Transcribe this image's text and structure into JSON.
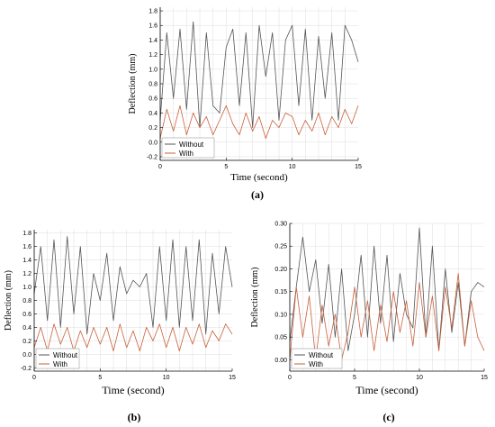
{
  "chart_data": [
    {
      "type": "line",
      "panel_label": "(a)",
      "xlabel": "Time (second)",
      "ylabel": "Deflection (mm)",
      "xlim": [
        0,
        15
      ],
      "ylim": [
        -0.25,
        1.85
      ],
      "xticks": [
        0,
        5,
        10,
        15
      ],
      "xtick_labels": [
        "0",
        "5",
        "10",
        "15"
      ],
      "yticks": [
        -0.2,
        0.0,
        0.2,
        0.4,
        0.6,
        0.8,
        1.0,
        1.2,
        1.4,
        1.6,
        1.8
      ],
      "ytick_labels": [
        "-0.2",
        "0.0",
        "0.2",
        "0.4",
        "0.6",
        "0.8",
        "1.0",
        "1.2",
        "1.4",
        "1.6",
        "1.8"
      ],
      "grid": true,
      "legend_position": "bottom-left",
      "series": [
        {
          "name": "Without",
          "color": "#555555",
          "x": [
            0.0,
            0.5,
            1.0,
            1.5,
            2.0,
            2.5,
            3.0,
            3.5,
            4.0,
            4.5,
            5.0,
            5.5,
            6.0,
            6.5,
            7.0,
            7.5,
            8.0,
            8.5,
            9.0,
            9.5,
            10.0,
            10.5,
            11.0,
            11.5,
            12.0,
            12.5,
            13.0,
            13.5,
            14.0,
            14.5,
            15.0
          ],
          "values": [
            0.3,
            1.5,
            0.6,
            1.55,
            0.45,
            1.65,
            0.2,
            1.5,
            0.5,
            0.4,
            1.3,
            1.55,
            0.5,
            1.5,
            0.2,
            1.6,
            0.9,
            1.5,
            0.3,
            1.4,
            1.6,
            0.5,
            1.55,
            0.3,
            1.45,
            0.6,
            1.5,
            0.3,
            1.6,
            1.4,
            1.1
          ]
        },
        {
          "name": "With",
          "color": "#c8603a",
          "x": [
            0.0,
            0.5,
            1.0,
            1.5,
            2.0,
            2.5,
            3.0,
            3.5,
            4.0,
            4.5,
            5.0,
            5.5,
            6.0,
            6.5,
            7.0,
            7.5,
            8.0,
            8.5,
            9.0,
            9.5,
            10.0,
            10.5,
            11.0,
            11.5,
            12.0,
            12.5,
            13.0,
            13.5,
            14.0,
            14.5,
            15.0
          ],
          "values": [
            0.05,
            0.45,
            0.15,
            0.5,
            0.1,
            0.4,
            0.2,
            0.35,
            0.1,
            0.3,
            0.5,
            0.25,
            0.1,
            0.4,
            0.15,
            0.35,
            0.05,
            0.3,
            0.2,
            0.4,
            0.35,
            0.1,
            0.3,
            0.15,
            0.4,
            0.1,
            0.35,
            0.2,
            0.45,
            0.25,
            0.5
          ]
        }
      ]
    },
    {
      "type": "line",
      "panel_label": "(b)",
      "xlabel": "Time (second)",
      "ylabel": "Deflection (mm)",
      "xlim": [
        0,
        15
      ],
      "ylim": [
        -0.25,
        1.85
      ],
      "xticks": [
        0,
        5,
        10,
        15
      ],
      "xtick_labels": [
        "0",
        "5",
        "10",
        "15"
      ],
      "yticks": [
        -0.2,
        0.0,
        0.2,
        0.4,
        0.6,
        0.8,
        1.0,
        1.2,
        1.4,
        1.6,
        1.8
      ],
      "ytick_labels": [
        "-0.2",
        "0.0",
        "0.2",
        "0.4",
        "0.6",
        "0.8",
        "1.0",
        "1.2",
        "1.4",
        "1.6",
        "1.8"
      ],
      "grid": true,
      "legend_position": "bottom-left",
      "series": [
        {
          "name": "Without",
          "color": "#555555",
          "x": [
            0.0,
            0.5,
            1.0,
            1.5,
            2.0,
            2.5,
            3.0,
            3.5,
            4.0,
            4.5,
            5.0,
            5.5,
            6.0,
            6.5,
            7.0,
            7.5,
            8.0,
            8.5,
            9.0,
            9.5,
            10.0,
            10.5,
            11.0,
            11.5,
            12.0,
            12.5,
            13.0,
            13.5,
            14.0,
            14.5,
            15.0
          ],
          "values": [
            0.9,
            1.6,
            0.5,
            1.7,
            0.4,
            1.75,
            0.6,
            1.6,
            0.3,
            1.2,
            0.8,
            1.5,
            0.5,
            1.3,
            0.9,
            1.1,
            1.0,
            1.2,
            0.4,
            1.6,
            0.5,
            1.7,
            0.4,
            1.6,
            0.5,
            1.7,
            0.3,
            1.5,
            0.6,
            1.6,
            1.0
          ]
        },
        {
          "name": "With",
          "color": "#c8603a",
          "x": [
            0.0,
            0.5,
            1.0,
            1.5,
            2.0,
            2.5,
            3.0,
            3.5,
            4.0,
            4.5,
            5.0,
            5.5,
            6.0,
            6.5,
            7.0,
            7.5,
            8.0,
            8.5,
            9.0,
            9.5,
            10.0,
            10.5,
            11.0,
            11.5,
            12.0,
            12.5,
            13.0,
            13.5,
            14.0,
            14.5,
            15.0
          ],
          "values": [
            0.1,
            0.4,
            0.05,
            0.45,
            0.15,
            0.4,
            0.05,
            0.35,
            0.1,
            0.4,
            0.15,
            0.4,
            0.05,
            0.45,
            0.1,
            0.35,
            0.05,
            0.4,
            0.2,
            0.45,
            0.1,
            0.4,
            0.05,
            0.4,
            0.15,
            0.45,
            0.1,
            0.35,
            0.2,
            0.45,
            0.3
          ]
        }
      ]
    },
    {
      "type": "line",
      "panel_label": "(c)",
      "xlabel": "Time (second)",
      "ylabel": "Deflection (mm)",
      "xlim": [
        0,
        15
      ],
      "ylim": [
        -0.025,
        0.3
      ],
      "xticks": [
        0,
        5,
        10,
        15
      ],
      "xtick_labels": [
        "0",
        "5",
        "10",
        "15"
      ],
      "yticks": [
        0.0,
        0.05,
        0.1,
        0.15,
        0.2,
        0.25,
        0.3
      ],
      "ytick_labels": [
        "0.00",
        "0.05",
        "0.10",
        "0.15",
        "0.20",
        "0.25",
        "0.30"
      ],
      "grid": true,
      "legend_position": "bottom-left",
      "series": [
        {
          "name": "Without",
          "color": "#555555",
          "x": [
            0.0,
            0.5,
            1.0,
            1.5,
            2.0,
            2.5,
            3.0,
            3.5,
            4.0,
            4.5,
            5.0,
            5.5,
            6.0,
            6.5,
            7.0,
            7.5,
            8.0,
            8.5,
            9.0,
            9.5,
            10.0,
            10.5,
            11.0,
            11.5,
            12.0,
            12.5,
            13.0,
            13.5,
            14.0,
            14.5,
            15.0
          ],
          "values": [
            0.04,
            0.16,
            0.27,
            0.15,
            0.22,
            0.08,
            0.21,
            0.05,
            0.2,
            0.02,
            0.1,
            0.23,
            0.05,
            0.25,
            0.08,
            0.23,
            0.04,
            0.19,
            0.1,
            0.07,
            0.29,
            0.05,
            0.25,
            0.02,
            0.2,
            0.06,
            0.17,
            0.03,
            0.15,
            0.17,
            0.16
          ]
        },
        {
          "name": "With",
          "color": "#c8603a",
          "x": [
            0.0,
            0.5,
            1.0,
            1.5,
            2.0,
            2.5,
            3.0,
            3.5,
            4.0,
            4.5,
            5.0,
            5.5,
            6.0,
            6.5,
            7.0,
            7.5,
            8.0,
            8.5,
            9.0,
            9.5,
            10.0,
            10.5,
            11.0,
            11.5,
            12.0,
            12.5,
            13.0,
            13.5,
            14.0,
            14.5,
            15.0
          ],
          "values": [
            0.0,
            0.16,
            0.05,
            0.14,
            0.0,
            0.12,
            0.03,
            0.1,
            0.0,
            0.06,
            0.16,
            0.05,
            0.13,
            0.02,
            0.12,
            0.04,
            0.15,
            0.06,
            0.13,
            0.03,
            0.17,
            0.05,
            0.14,
            0.02,
            0.16,
            0.07,
            0.19,
            0.03,
            0.13,
            0.05,
            0.02
          ]
        }
      ]
    }
  ]
}
